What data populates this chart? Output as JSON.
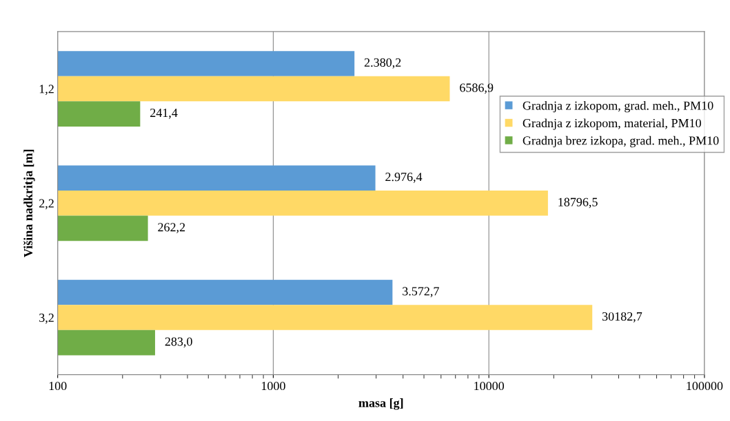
{
  "chart_data": {
    "type": "bar",
    "orientation": "horizontal",
    "log": "x",
    "xlabel": "masa [g]",
    "ylabel": "Višina nadkritja [m]",
    "categories": [
      "1,2",
      "2,2",
      "3,2"
    ],
    "series": [
      {
        "name": "Gradnja z izkopom, grad. meh., PM10",
        "color": "#5b9bd5",
        "values": [
          2380.2,
          2976.4,
          3572.7
        ],
        "value_labels": [
          "2.380,2",
          "2.976,4",
          "3.572,7"
        ]
      },
      {
        "name": "Gradnja z izkopom, material, PM10",
        "color": "#ffd966",
        "values": [
          6586.9,
          18796.5,
          30182.7
        ],
        "value_labels": [
          "6586,9",
          "18796,5",
          "30182,7"
        ]
      },
      {
        "name": "Gradnja brez izkopa, grad. meh., PM10",
        "color": "#70ad47",
        "values": [
          241.4,
          262.2,
          283.0
        ],
        "value_labels": [
          "241,4",
          "262,2",
          "283,0"
        ]
      }
    ],
    "xlim": [
      100,
      100000
    ],
    "xticks": [
      100,
      1000,
      10000,
      100000
    ],
    "grid": "x",
    "legend": "right"
  }
}
